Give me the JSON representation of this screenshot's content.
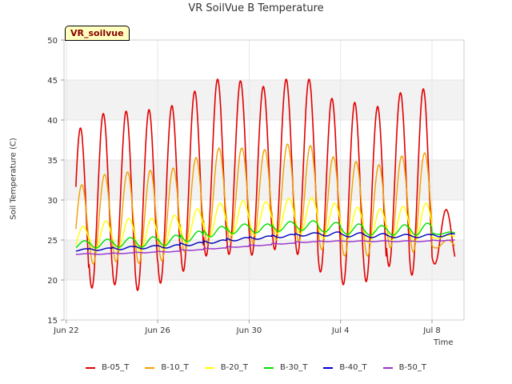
{
  "title": "VR SoilVue B Temperature",
  "station_tag": "VR_soilvue",
  "chart_data": {
    "type": "line",
    "title": "VR SoilVue B Temperature",
    "xlabel": "Time",
    "ylabel": "Soil Temperature (C)",
    "ylim": [
      15,
      50
    ],
    "yticks": [
      "15",
      "20",
      "25",
      "30",
      "35",
      "40",
      "45",
      "50"
    ],
    "xlim_days": [
      -0.1,
      17.4
    ],
    "xticks": [
      {
        "label": "Jun 22",
        "day": 0
      },
      {
        "label": "Jun 26",
        "day": 4
      },
      {
        "label": "Jun 30",
        "day": 8
      },
      {
        "label": "Jul 4",
        "day": 12
      },
      {
        "label": "Jul 8",
        "day": 16
      }
    ],
    "x_start_date": "Jun 22",
    "grid": true,
    "legend_position": "bottom",
    "series": [
      {
        "name": "B-05_T",
        "color": "#e00000",
        "daily_max": [
          39.0,
          40.8,
          41.1,
          41.3,
          41.8,
          43.6,
          45.1,
          44.9,
          44.2,
          45.1,
          45.1,
          42.7,
          42.2,
          41.7,
          43.4,
          43.9,
          28.8
        ],
        "daily_min": [
          17.7,
          19.0,
          19.4,
          18.7,
          19.6,
          21.1,
          23.0,
          23.2,
          23.1,
          23.8,
          23.2,
          21.0,
          19.4,
          19.8,
          21.7,
          20.6,
          22.0
        ]
      },
      {
        "name": "B-10_T",
        "color": "#f0a000",
        "daily_max": [
          31.9,
          33.2,
          33.5,
          33.7,
          34.0,
          35.3,
          36.5,
          36.5,
          36.3,
          37.0,
          36.8,
          35.4,
          34.8,
          34.4,
          35.5,
          35.9,
          25.0
        ],
        "daily_min": [
          21.5,
          22.0,
          22.3,
          22.1,
          22.4,
          23.5,
          24.5,
          24.8,
          24.6,
          25.0,
          24.8,
          23.8,
          23.0,
          23.0,
          24.0,
          23.5,
          24.0
        ]
      },
      {
        "name": "B-20_T",
        "color": "#ffff00",
        "daily_max": [
          26.7,
          27.4,
          27.7,
          27.7,
          28.1,
          28.9,
          29.6,
          29.9,
          29.8,
          30.2,
          30.3,
          29.6,
          29.1,
          28.9,
          29.2,
          29.6,
          25.6
        ],
        "daily_min": [
          23.5,
          23.6,
          23.7,
          23.6,
          23.8,
          24.6,
          25.3,
          25.6,
          25.6,
          25.8,
          25.8,
          25.2,
          24.7,
          24.6,
          24.9,
          24.7,
          25.2
        ]
      },
      {
        "name": "B-30_T",
        "color": "#00e000",
        "daily_max": [
          24.9,
          25.1,
          25.3,
          25.4,
          25.6,
          26.1,
          26.7,
          27.0,
          27.0,
          27.3,
          27.4,
          27.2,
          27.0,
          26.8,
          26.9,
          27.1,
          26.0
        ],
        "daily_min": [
          23.9,
          24.0,
          24.1,
          24.1,
          24.3,
          24.8,
          25.4,
          25.8,
          25.9,
          26.1,
          26.2,
          26.0,
          25.7,
          25.6,
          25.6,
          25.6,
          25.7
        ]
      },
      {
        "name": "B-40_T",
        "color": "#0000c0",
        "daily_max": [
          23.9,
          24.0,
          24.2,
          24.3,
          24.4,
          24.7,
          25.0,
          25.3,
          25.5,
          25.7,
          25.9,
          26.0,
          25.9,
          25.8,
          25.7,
          25.7,
          25.8
        ],
        "daily_min": [
          23.6,
          23.7,
          23.8,
          23.9,
          24.0,
          24.3,
          24.6,
          24.9,
          25.1,
          25.3,
          25.5,
          25.5,
          25.4,
          25.3,
          25.3,
          25.3,
          25.4
        ]
      },
      {
        "name": "B-50_T",
        "color": "#9933cc",
        "daily_max": [
          23.3,
          23.3,
          23.4,
          23.5,
          23.6,
          23.8,
          24.0,
          24.2,
          24.4,
          24.6,
          24.8,
          24.9,
          24.9,
          24.9,
          24.9,
          24.9,
          25.0
        ],
        "daily_min": [
          23.2,
          23.2,
          23.3,
          23.4,
          23.5,
          23.7,
          23.9,
          24.1,
          24.3,
          24.5,
          24.7,
          24.8,
          24.8,
          24.8,
          24.8,
          24.8,
          24.9
        ]
      }
    ]
  }
}
